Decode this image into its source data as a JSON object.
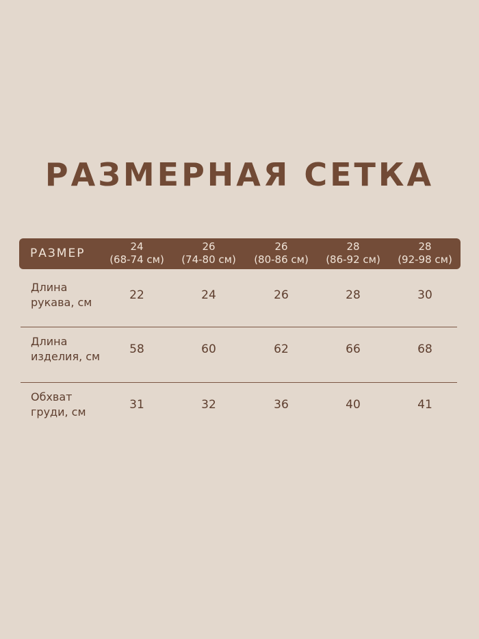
{
  "title": "РАЗМЕРНАЯ СЕТКА",
  "header": {
    "label": "РАЗМЕР",
    "sizes": [
      {
        "size": "24",
        "range": "(68-74 см)"
      },
      {
        "size": "26",
        "range": "(74-80 см)"
      },
      {
        "size": "26",
        "range": "(80-86 см)"
      },
      {
        "size": "28",
        "range": "(86-92 см)"
      },
      {
        "size": "28",
        "range": "(92-98 см)"
      }
    ]
  },
  "rows": [
    {
      "line1": "Длина",
      "line2": "рукава, см",
      "values": [
        "22",
        "24",
        "26",
        "28",
        "30"
      ]
    },
    {
      "line1": "Длина",
      "line2": "изделия, см",
      "values": [
        "58",
        "60",
        "62",
        "66",
        "68"
      ]
    },
    {
      "line1": "Обхват",
      "line2": "груди, см",
      "values": [
        "31",
        "32",
        "36",
        "40",
        "41"
      ]
    }
  ],
  "colors": {
    "background": "#e3d8cd",
    "accent": "#734c38",
    "text": "#5e3e2e"
  }
}
